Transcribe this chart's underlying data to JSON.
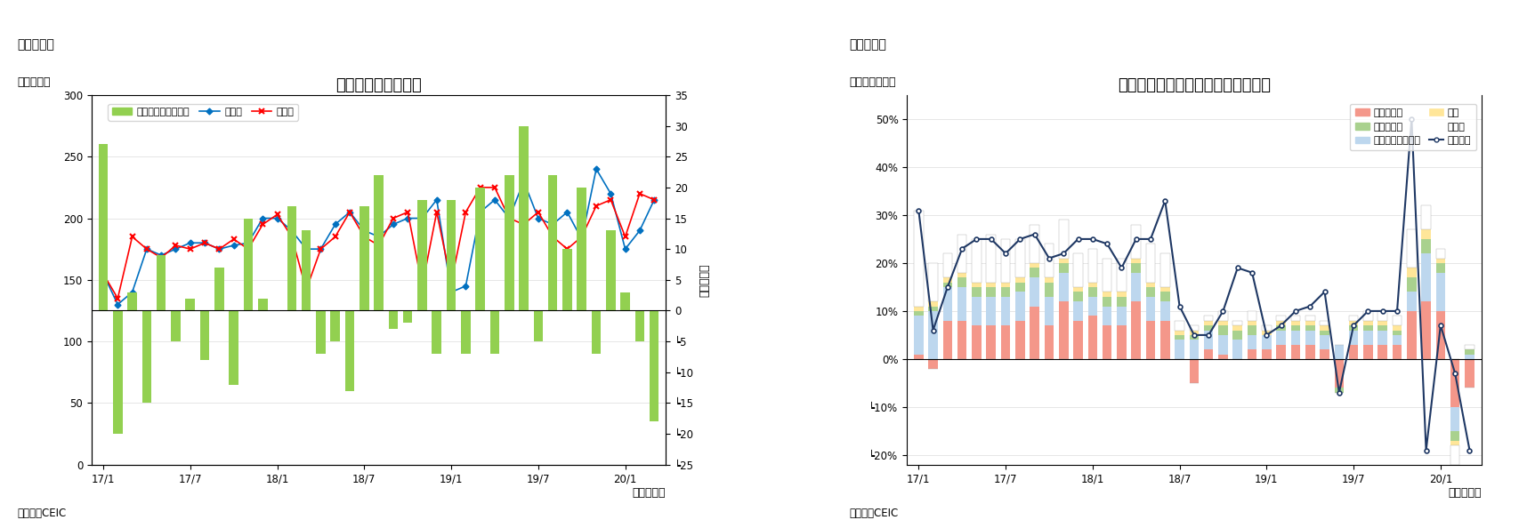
{
  "chart5": {
    "title": "ベトナムの貿易収支",
    "fig5_label": "（図表５）",
    "ylabel_left": "（億ドル）",
    "ylabel_right": "（億ドル）",
    "xlabel": "（年／月）",
    "source": "（資料）CEIC",
    "legend_balance": "貿易収支（右目盛）",
    "legend_export": "輸出額",
    "legend_import": "輸入額",
    "ylim_left": [
      0,
      300
    ],
    "ylim_right": [
      -25,
      35
    ],
    "yticks_left": [
      0,
      50,
      100,
      150,
      200,
      250,
      300
    ],
    "yticks_right_labels": [
      "┕25",
      "┕20",
      "┕15",
      "┕10",
      "┕5",
      "0",
      "5",
      "10",
      "15",
      "20",
      "25",
      "30",
      "35"
    ],
    "yticks_right_vals": [
      -25,
      -20,
      -15,
      -10,
      -5,
      0,
      5,
      10,
      15,
      20,
      25,
      30,
      35
    ],
    "xtick_labels": [
      "17/1",
      "17/7",
      "18/1",
      "18/7",
      "19/1",
      "19/7",
      "20/1"
    ],
    "xtick_positions": [
      0,
      6,
      12,
      18,
      24,
      30,
      36
    ],
    "x_indices": [
      0,
      1,
      2,
      3,
      4,
      5,
      6,
      7,
      8,
      9,
      10,
      11,
      12,
      13,
      14,
      15,
      16,
      17,
      18,
      19,
      20,
      21,
      22,
      23,
      24,
      25,
      26,
      27,
      28,
      29,
      30,
      31,
      32,
      33,
      34,
      35,
      36,
      37,
      38
    ],
    "exports": [
      155,
      130,
      140,
      175,
      170,
      175,
      180,
      180,
      175,
      178,
      180,
      200,
      200,
      190,
      175,
      175,
      195,
      205,
      190,
      185,
      195,
      200,
      200,
      215,
      140,
      145,
      205,
      215,
      200,
      230,
      200,
      195,
      205,
      183,
      240,
      220,
      175,
      190,
      215
    ],
    "imports": [
      155,
      135,
      185,
      175,
      168,
      178,
      175,
      180,
      175,
      183,
      175,
      195,
      203,
      185,
      142,
      175,
      185,
      205,
      185,
      178,
      200,
      205,
      145,
      205,
      148,
      205,
      225,
      225,
      200,
      195,
      205,
      185,
      175,
      185,
      210,
      215,
      185,
      220,
      215
    ],
    "trade_balance": [
      27,
      -20,
      3,
      -15,
      9,
      -5,
      2,
      -8,
      7,
      -12,
      15,
      2,
      0,
      17,
      13,
      -7,
      -5,
      -13,
      17,
      22,
      -3,
      -2,
      18,
      -7,
      18,
      -7,
      20,
      -7,
      22,
      30,
      -5,
      22,
      10,
      20,
      -7,
      13,
      3,
      -5,
      -18
    ],
    "bar_color": "#92D050",
    "export_color": "#0070C0",
    "import_color": "#FF0000"
  },
  "chart6": {
    "title": "ベトナム　輸出の伸び率（品目別）",
    "fig6_label": "（図表６）",
    "ylabel_left": "（前年同月比）",
    "xlabel": "（年／月）",
    "source": "（資料）CEIC",
    "legend_phone": "電話・部品",
    "legend_electric": "電気製品・同部品",
    "legend_textiles": "織物・衣類",
    "legend_footwear": "履物",
    "legend_other": "その他",
    "legend_total": "輸出合計",
    "ylim": [
      -0.22,
      0.55
    ],
    "yticks": [
      -0.2,
      -0.1,
      0.0,
      0.1,
      0.2,
      0.3,
      0.4,
      0.5
    ],
    "ytick_labels": [
      "┕20%",
      "┕10%",
      "0%",
      "10%",
      "20%",
      "30%",
      "40%",
      "50%"
    ],
    "xtick_labels": [
      "17/1",
      "17/7",
      "18/1",
      "18/7",
      "19/1",
      "19/7",
      "20/1"
    ],
    "xtick_positions": [
      0,
      6,
      12,
      18,
      24,
      30,
      36
    ],
    "x_indices": [
      0,
      1,
      2,
      3,
      4,
      5,
      6,
      7,
      8,
      9,
      10,
      11,
      12,
      13,
      14,
      15,
      16,
      17,
      18,
      19,
      20,
      21,
      22,
      23,
      24,
      25,
      26,
      27,
      28,
      29,
      30,
      31,
      32,
      33,
      34,
      35,
      36,
      37,
      38
    ],
    "phone_parts": [
      0.01,
      -0.02,
      0.08,
      0.08,
      0.07,
      0.07,
      0.07,
      0.08,
      0.11,
      0.07,
      0.12,
      0.08,
      0.09,
      0.07,
      0.07,
      0.12,
      0.08,
      0.08,
      0.0,
      -0.05,
      0.02,
      0.01,
      0.0,
      0.02,
      0.02,
      0.03,
      0.03,
      0.03,
      0.02,
      -0.06,
      0.03,
      0.03,
      0.03,
      0.03,
      0.1,
      0.12,
      0.1,
      -0.1,
      -0.06
    ],
    "electric": [
      0.08,
      0.1,
      0.07,
      0.07,
      0.06,
      0.06,
      0.06,
      0.06,
      0.06,
      0.06,
      0.06,
      0.04,
      0.04,
      0.04,
      0.04,
      0.06,
      0.05,
      0.04,
      0.04,
      0.04,
      0.04,
      0.04,
      0.04,
      0.03,
      0.03,
      0.03,
      0.03,
      0.03,
      0.03,
      0.03,
      0.03,
      0.03,
      0.03,
      0.02,
      0.04,
      0.1,
      0.08,
      -0.05,
      0.01
    ],
    "textiles": [
      0.01,
      0.01,
      0.01,
      0.02,
      0.02,
      0.02,
      0.02,
      0.02,
      0.02,
      0.03,
      0.02,
      0.02,
      0.02,
      0.02,
      0.02,
      0.02,
      0.02,
      0.02,
      0.01,
      0.01,
      0.01,
      0.02,
      0.02,
      0.02,
      0.0,
      0.01,
      0.01,
      0.01,
      0.01,
      -0.01,
      0.01,
      0.01,
      0.01,
      0.01,
      0.03,
      0.03,
      0.02,
      -0.02,
      0.01
    ],
    "footwear": [
      0.01,
      0.01,
      0.01,
      0.01,
      0.01,
      0.01,
      0.01,
      0.01,
      0.01,
      0.01,
      0.01,
      0.01,
      0.01,
      0.01,
      0.01,
      0.01,
      0.01,
      0.01,
      0.01,
      0.01,
      0.01,
      0.01,
      0.01,
      0.01,
      0.01,
      0.01,
      0.01,
      0.01,
      0.01,
      0.0,
      0.01,
      0.01,
      0.01,
      0.01,
      0.02,
      0.02,
      0.01,
      -0.01,
      0.0
    ],
    "other": [
      0.2,
      0.08,
      0.05,
      0.08,
      0.09,
      0.1,
      0.09,
      0.08,
      0.08,
      0.07,
      0.08,
      0.07,
      0.07,
      0.07,
      0.07,
      0.07,
      0.08,
      0.07,
      0.02,
      0.01,
      0.01,
      0.02,
      0.01,
      0.02,
      0.01,
      0.01,
      0.01,
      0.01,
      0.01,
      0.0,
      0.01,
      0.02,
      0.02,
      0.02,
      0.08,
      0.05,
      0.02,
      -0.04,
      0.01
    ],
    "total_line": [
      0.31,
      0.06,
      0.15,
      0.23,
      0.25,
      0.25,
      0.22,
      0.25,
      0.26,
      0.21,
      0.22,
      0.25,
      0.25,
      0.24,
      0.19,
      0.25,
      0.25,
      0.33,
      0.11,
      0.05,
      0.05,
      0.1,
      0.19,
      0.18,
      0.05,
      0.07,
      0.1,
      0.11,
      0.14,
      -0.07,
      0.07,
      0.1,
      0.1,
      0.1,
      0.5,
      -0.19,
      0.07,
      -0.03,
      -0.19
    ],
    "phone_color": "#F4978A",
    "electric_color": "#BDD7EE",
    "textiles_color": "#A9D18E",
    "footwear_color": "#FFE699",
    "other_color": "#FFFFFF",
    "total_color": "#1F3864"
  }
}
